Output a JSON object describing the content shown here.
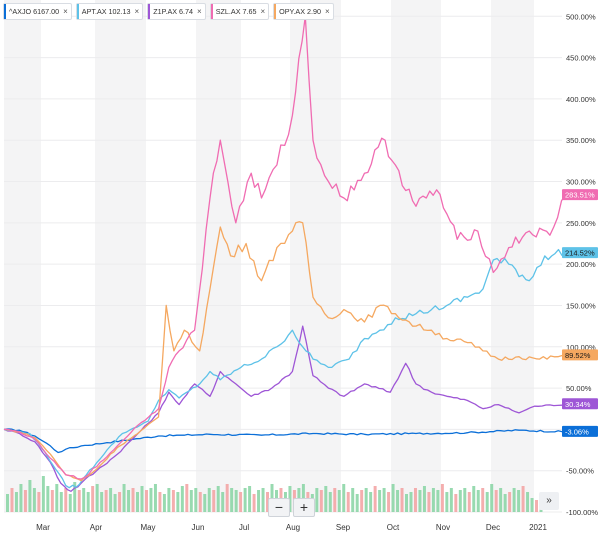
{
  "legend": [
    {
      "label": "^AXJO 6167.00",
      "color": "#0b6fd8"
    },
    {
      "label": "APT.AX 102.13",
      "color": "#5ec2e8"
    },
    {
      "label": "Z1P.AX 6.74",
      "color": "#9e56d6"
    },
    {
      "label": "SZL.AX 7.65",
      "color": "#f06cb2"
    },
    {
      "label": "OPY.AX 2.90",
      "color": "#f5a860"
    }
  ],
  "zoom": {
    "minus": "−",
    "plus": "+"
  },
  "scroll_label": "»",
  "chart_data": {
    "type": "line",
    "title": "",
    "xlabel": "",
    "ylabel": "",
    "x_ticks": [
      "Mar",
      "Apr",
      "May",
      "Jun",
      "Jul",
      "Aug",
      "Sep",
      "Oct",
      "Nov",
      "Dec",
      "2021"
    ],
    "y_ticks": [
      "500.00%",
      "450.00%",
      "400.00%",
      "350.00%",
      "300.00%",
      "250.00%",
      "200.00%",
      "150.00%",
      "100.00%",
      "50.00%",
      "0.00%",
      "-50.00%",
      "-100.00%"
    ],
    "ylim": [
      -100,
      510
    ],
    "grid": true,
    "legend_position": "top-left",
    "series": [
      {
        "name": "^AXJO",
        "color": "#0b6fd8",
        "last_label": "-3.06%",
        "points": [
          [
            0,
            0
          ],
          [
            0.3,
            -1
          ],
          [
            0.6,
            -8
          ],
          [
            0.9,
            -20
          ],
          [
            1.05,
            -28
          ],
          [
            1.2,
            -24
          ],
          [
            1.5,
            -20
          ],
          [
            2.0,
            -16
          ],
          [
            2.5,
            -12
          ],
          [
            3.0,
            -8
          ],
          [
            3.5,
            -7
          ],
          [
            4,
            -6
          ],
          [
            5,
            -7
          ],
          [
            6,
            -5
          ],
          [
            7,
            -6
          ],
          [
            8,
            -5
          ],
          [
            9,
            -4
          ],
          [
            10,
            -1
          ],
          [
            10.9,
            -3
          ]
        ]
      },
      {
        "name": "APT.AX",
        "color": "#5ec2e8",
        "last_label": "214.52%",
        "points": [
          [
            0,
            0
          ],
          [
            0.5,
            -5
          ],
          [
            0.8,
            -28
          ],
          [
            1.0,
            -48
          ],
          [
            1.2,
            -68
          ],
          [
            1.4,
            -70
          ],
          [
            1.6,
            -55
          ],
          [
            2.0,
            -25
          ],
          [
            2.3,
            -5
          ],
          [
            2.8,
            10
          ],
          [
            3.0,
            35
          ],
          [
            3.2,
            48
          ],
          [
            3.4,
            38
          ],
          [
            3.8,
            55
          ],
          [
            4.0,
            70
          ],
          [
            4.2,
            60
          ],
          [
            4.6,
            75
          ],
          [
            5.0,
            85
          ],
          [
            5.3,
            100
          ],
          [
            5.6,
            120
          ],
          [
            5.8,
            100
          ],
          [
            6.0,
            85
          ],
          [
            6.3,
            75
          ],
          [
            6.7,
            85
          ],
          [
            7.0,
            110
          ],
          [
            7.3,
            120
          ],
          [
            7.6,
            135
          ],
          [
            8.0,
            140
          ],
          [
            8.3,
            145
          ],
          [
            8.6,
            150
          ],
          [
            9.0,
            160
          ],
          [
            9.3,
            170
          ],
          [
            9.5,
            205
          ],
          [
            9.8,
            200
          ],
          [
            10.2,
            180
          ],
          [
            10.5,
            210
          ],
          [
            10.9,
            214.52
          ]
        ]
      },
      {
        "name": "Z1P.AX",
        "color": "#9e56d6",
        "last_label": "30.34%",
        "points": [
          [
            0,
            0
          ],
          [
            0.3,
            -5
          ],
          [
            0.6,
            -15
          ],
          [
            0.9,
            -40
          ],
          [
            1.1,
            -65
          ],
          [
            1.3,
            -75
          ],
          [
            1.5,
            -65
          ],
          [
            1.8,
            -50
          ],
          [
            2.2,
            -30
          ],
          [
            2.6,
            -5
          ],
          [
            3.0,
            20
          ],
          [
            3.2,
            45
          ],
          [
            3.4,
            30
          ],
          [
            3.7,
            55
          ],
          [
            4.0,
            40
          ],
          [
            4.2,
            70
          ],
          [
            4.5,
            55
          ],
          [
            4.8,
            40
          ],
          [
            5.2,
            50
          ],
          [
            5.6,
            70
          ],
          [
            5.8,
            125
          ],
          [
            6.0,
            65
          ],
          [
            6.3,
            50
          ],
          [
            6.6,
            40
          ],
          [
            7.0,
            55
          ],
          [
            7.5,
            45
          ],
          [
            7.8,
            80
          ],
          [
            8.0,
            55
          ],
          [
            8.3,
            45
          ],
          [
            8.6,
            40
          ],
          [
            9.0,
            35
          ],
          [
            9.3,
            25
          ],
          [
            9.6,
            30
          ],
          [
            10.0,
            20
          ],
          [
            10.3,
            28
          ],
          [
            10.9,
            30.34
          ]
        ]
      },
      {
        "name": "SZL.AX",
        "color": "#f06cb2",
        "last_label": "283.51%",
        "points": [
          [
            0,
            0
          ],
          [
            0.3,
            -3
          ],
          [
            0.6,
            -12
          ],
          [
            0.9,
            -35
          ],
          [
            1.2,
            -55
          ],
          [
            1.5,
            -60
          ],
          [
            1.8,
            -45
          ],
          [
            2.2,
            -20
          ],
          [
            2.6,
            5
          ],
          [
            3.0,
            25
          ],
          [
            3.2,
            75
          ],
          [
            3.4,
            95
          ],
          [
            3.7,
            120
          ],
          [
            4.0,
            280
          ],
          [
            4.2,
            350
          ],
          [
            4.5,
            250
          ],
          [
            4.8,
            310
          ],
          [
            5.0,
            280
          ],
          [
            5.3,
            320
          ],
          [
            5.6,
            380
          ],
          [
            5.85,
            500
          ],
          [
            6.0,
            350
          ],
          [
            6.3,
            300
          ],
          [
            6.6,
            280
          ],
          [
            7.0,
            310
          ],
          [
            7.4,
            350
          ],
          [
            7.6,
            320
          ],
          [
            8.0,
            270
          ],
          [
            8.4,
            290
          ],
          [
            8.8,
            230
          ],
          [
            9.2,
            240
          ],
          [
            9.5,
            190
          ],
          [
            9.8,
            220
          ],
          [
            10.2,
            240
          ],
          [
            10.6,
            235
          ],
          [
            10.9,
            283.51
          ]
        ]
      },
      {
        "name": "OPY.AX",
        "color": "#f5a860",
        "last_label": "89.52%",
        "points": [
          [
            0,
            0
          ],
          [
            0.3,
            -3
          ],
          [
            0.6,
            -10
          ],
          [
            0.9,
            -30
          ],
          [
            1.2,
            -55
          ],
          [
            1.5,
            -62
          ],
          [
            1.8,
            -48
          ],
          [
            2.2,
            -22
          ],
          [
            2.6,
            -5
          ],
          [
            3.0,
            15
          ],
          [
            3.15,
            150
          ],
          [
            3.3,
            95
          ],
          [
            3.5,
            120
          ],
          [
            3.8,
            95
          ],
          [
            4.0,
            170
          ],
          [
            4.2,
            245
          ],
          [
            4.4,
            210
          ],
          [
            4.7,
            225
          ],
          [
            5.0,
            180
          ],
          [
            5.3,
            220
          ],
          [
            5.6,
            240
          ],
          [
            5.8,
            250
          ],
          [
            6.0,
            160
          ],
          [
            6.3,
            135
          ],
          [
            6.6,
            145
          ],
          [
            7.0,
            130
          ],
          [
            7.3,
            150
          ],
          [
            7.6,
            140
          ],
          [
            8.0,
            125
          ],
          [
            8.3,
            120
          ],
          [
            8.6,
            110
          ],
          [
            9.0,
            105
          ],
          [
            9.3,
            95
          ],
          [
            9.6,
            85
          ],
          [
            10.0,
            88
          ],
          [
            10.4,
            85
          ],
          [
            10.9,
            89.52
          ]
        ]
      }
    ],
    "volume": {
      "color_up": "#86d4a2",
      "color_down": "#f2a0a0",
      "values": [
        0.45,
        0.6,
        0.5,
        0.7,
        0.55,
        0.8,
        0.6,
        0.5,
        0.9,
        0.65,
        0.55,
        0.7,
        0.5,
        0.6,
        0.45,
        0.75,
        0.55,
        0.6,
        0.5,
        0.65,
        0.7,
        0.5,
        0.55,
        0.6,
        0.45,
        0.5,
        0.7,
        0.55,
        0.6,
        0.5,
        0.65,
        0.55,
        0.6,
        0.7,
        0.5,
        0.45,
        0.6,
        0.55,
        0.5,
        0.65,
        0.7,
        0.55,
        0.6,
        0.5,
        0.45,
        0.6,
        0.55,
        0.65,
        0.5,
        0.7,
        0.6,
        0.55,
        0.5,
        0.6,
        0.65,
        0.45,
        0.55,
        0.6,
        0.5,
        0.7,
        0.55,
        0.6,
        0.5,
        0.65,
        0.55,
        0.6,
        0.7,
        0.5,
        0.45,
        0.6,
        0.55,
        0.65,
        0.5,
        0.6,
        0.55,
        0.7,
        0.5,
        0.6,
        0.45,
        0.55,
        0.6,
        0.5,
        0.65,
        0.55,
        0.6,
        0.5,
        0.7,
        0.55,
        0.6,
        0.45,
        0.5,
        0.6,
        0.55,
        0.65,
        0.5,
        0.6,
        0.55,
        0.7,
        0.5,
        0.6,
        0.45,
        0.55,
        0.6,
        0.5,
        0.65,
        0.55,
        0.6,
        0.5,
        0.7,
        0.55,
        0.6,
        0.45,
        0.5,
        0.6,
        0.55,
        0.65,
        0.5,
        0.35,
        0.3,
        0.25
      ]
    }
  }
}
